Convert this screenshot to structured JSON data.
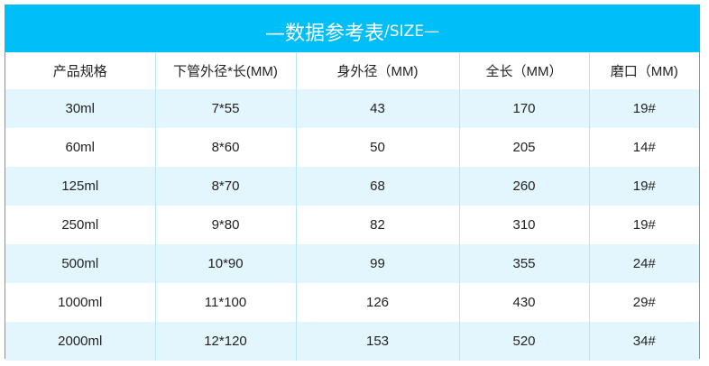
{
  "title": {
    "main": "—数据参考表",
    "suffix": "/SIZE—"
  },
  "headers": [
    "产品规格",
    "下管外径*长(MM)",
    "身外径（MM)",
    "全长（MM）",
    "磨口（MM)"
  ],
  "rows": [
    [
      "30ml",
      "7*55",
      "43",
      "170",
      "19#"
    ],
    [
      "60ml",
      "8*60",
      "50",
      "205",
      "14#"
    ],
    [
      "125ml",
      "8*70",
      "68",
      "260",
      "19#"
    ],
    [
      "250ml",
      "9*80",
      "82",
      "310",
      "19#"
    ],
    [
      "500ml",
      "10*90",
      "99",
      "355",
      "24#"
    ],
    [
      "1000ml",
      "11*100",
      "126",
      "430",
      "29#"
    ],
    [
      "2000ml",
      "12*120",
      "153",
      "520",
      "34#"
    ]
  ],
  "colors": {
    "header": "#00bef8",
    "alt_row": "#e4f6fd",
    "border": "#1fb6ea"
  }
}
